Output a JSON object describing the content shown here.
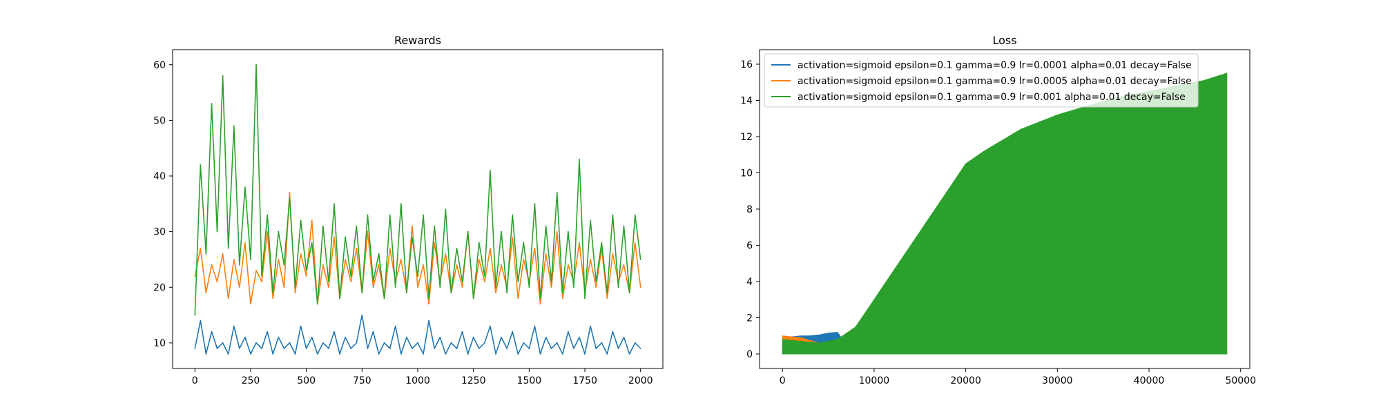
{
  "chart_data": [
    {
      "type": "line",
      "title": "Rewards",
      "xlabel": "",
      "ylabel": "",
      "xlim": [
        -100,
        2100
      ],
      "ylim": [
        5.4,
        62.7
      ],
      "x_ticks": [
        0,
        250,
        500,
        750,
        1000,
        1250,
        1500,
        1750,
        2000
      ],
      "y_ticks": [
        10,
        20,
        30,
        40,
        50,
        60
      ],
      "grid": false,
      "legend": null,
      "series": [
        {
          "color": "#1f77b4",
          "approx": true,
          "x": [
            0,
            25,
            50,
            75,
            100,
            125,
            150,
            175,
            200,
            225,
            250,
            275,
            300,
            325,
            350,
            375,
            400,
            425,
            450,
            475,
            500,
            525,
            550,
            575,
            600,
            625,
            650,
            675,
            700,
            725,
            750,
            775,
            800,
            825,
            850,
            875,
            900,
            925,
            950,
            975,
            1000,
            1025,
            1050,
            1075,
            1100,
            1125,
            1150,
            1175,
            1200,
            1225,
            1250,
            1275,
            1300,
            1325,
            1350,
            1375,
            1400,
            1425,
            1450,
            1475,
            1500,
            1525,
            1550,
            1575,
            1600,
            1625,
            1650,
            1675,
            1700,
            1725,
            1750,
            1775,
            1800,
            1825,
            1850,
            1875,
            1900,
            1925,
            1950,
            1975,
            2000
          ],
          "values": [
            9,
            14,
            8,
            12,
            9,
            10,
            8,
            13,
            9,
            11,
            8,
            10,
            9,
            12,
            8,
            11,
            9,
            10,
            8,
            13,
            9,
            11,
            8,
            10,
            9,
            12,
            8,
            11,
            9,
            10,
            15,
            9,
            12,
            8,
            10,
            9,
            13,
            8,
            11,
            9,
            10,
            8,
            14,
            9,
            11,
            8,
            10,
            9,
            12,
            8,
            11,
            9,
            10,
            13,
            8,
            11,
            9,
            12,
            8,
            10,
            9,
            13,
            8,
            11,
            9,
            10,
            8,
            12,
            9,
            11,
            8,
            13,
            9,
            10,
            8,
            12,
            9,
            11,
            8,
            10,
            9
          ]
        },
        {
          "color": "#ff7f0e",
          "approx": true,
          "x": [
            0,
            25,
            50,
            75,
            100,
            125,
            150,
            175,
            200,
            225,
            250,
            275,
            300,
            325,
            350,
            375,
            400,
            425,
            450,
            475,
            500,
            525,
            550,
            575,
            600,
            625,
            650,
            675,
            700,
            725,
            750,
            775,
            800,
            825,
            850,
            875,
            900,
            925,
            950,
            975,
            1000,
            1025,
            1050,
            1075,
            1100,
            1125,
            1150,
            1175,
            1200,
            1225,
            1250,
            1275,
            1300,
            1325,
            1350,
            1375,
            1400,
            1425,
            1450,
            1475,
            1500,
            1525,
            1550,
            1575,
            1600,
            1625,
            1650,
            1675,
            1700,
            1725,
            1750,
            1775,
            1800,
            1825,
            1850,
            1875,
            1900,
            1925,
            1950,
            1975,
            2000
          ],
          "values": [
            22,
            27,
            19,
            24,
            21,
            26,
            18,
            25,
            20,
            28,
            17,
            23,
            21,
            30,
            18,
            25,
            20,
            37,
            19,
            26,
            22,
            32,
            17,
            24,
            20,
            29,
            18,
            25,
            21,
            27,
            19,
            30,
            20,
            24,
            18,
            27,
            21,
            25,
            19,
            31,
            20,
            24,
            17,
            28,
            21,
            26,
            19,
            24,
            20,
            30,
            18,
            25,
            21,
            27,
            19,
            24,
            20,
            29,
            18,
            25,
            21,
            27,
            17,
            26,
            20,
            30,
            18,
            24,
            21,
            28,
            19,
            25,
            20,
            27,
            18,
            26,
            21,
            24,
            19,
            28,
            20
          ]
        },
        {
          "color": "#2ca02c",
          "approx": true,
          "x": [
            0,
            25,
            50,
            75,
            100,
            125,
            150,
            175,
            200,
            225,
            250,
            275,
            300,
            325,
            350,
            375,
            400,
            425,
            450,
            475,
            500,
            525,
            550,
            575,
            600,
            625,
            650,
            675,
            700,
            725,
            750,
            775,
            800,
            825,
            850,
            875,
            900,
            925,
            950,
            975,
            1000,
            1025,
            1050,
            1075,
            1100,
            1125,
            1150,
            1175,
            1200,
            1225,
            1250,
            1275,
            1300,
            1325,
            1350,
            1375,
            1400,
            1425,
            1450,
            1475,
            1500,
            1525,
            1550,
            1575,
            1600,
            1625,
            1650,
            1675,
            1700,
            1725,
            1750,
            1775,
            1800,
            1825,
            1850,
            1875,
            1900,
            1925,
            1950,
            1975,
            2000
          ],
          "values": [
            15,
            42,
            26,
            53,
            30,
            58,
            27,
            49,
            24,
            38,
            25,
            60,
            22,
            33,
            19,
            30,
            24,
            36,
            20,
            32,
            23,
            28,
            17,
            31,
            21,
            35,
            18,
            29,
            22,
            31,
            19,
            33,
            21,
            26,
            18,
            33,
            20,
            35,
            19,
            29,
            22,
            33,
            18,
            31,
            20,
            34,
            19,
            27,
            21,
            30,
            18,
            28,
            22,
            41,
            20,
            30,
            19,
            33,
            21,
            28,
            20,
            35,
            18,
            31,
            21,
            37,
            19,
            30,
            20,
            43,
            18,
            32,
            21,
            28,
            19,
            33,
            20,
            31,
            19,
            33,
            25
          ]
        }
      ]
    },
    {
      "type": "line",
      "title": "Loss",
      "xlabel": "",
      "ylabel": "",
      "xlim": [
        -2500,
        51000
      ],
      "ylim": [
        -0.8,
        16.8
      ],
      "x_ticks": [
        0,
        10000,
        20000,
        30000,
        40000,
        50000
      ],
      "y_ticks": [
        0,
        2,
        4,
        6,
        8,
        10,
        12,
        14,
        16
      ],
      "grid": false,
      "legend": {
        "placement": "upper-left",
        "entries": [
          {
            "label": "activation=sigmoid epsilon=0.1 gamma=0.9 lr=0.0001 alpha=0.01 decay=False",
            "color": "#1f77b4"
          },
          {
            "label": "activation=sigmoid epsilon=0.1 gamma=0.9 lr=0.0005 alpha=0.01 decay=False",
            "color": "#ff7f0e"
          },
          {
            "label": "activation=sigmoid epsilon=0.1 gamma=0.9 lr=0.001 alpha=0.01 decay=False",
            "color": "#2ca02c"
          }
        ]
      },
      "series": [
        {
          "color": "#1f77b4",
          "approx": true,
          "x": [
            0,
            1000,
            2000,
            3000,
            4000,
            5000,
            6000,
            7000,
            8000,
            10000,
            15000,
            20000,
            30000,
            40000,
            48500
          ],
          "upper": [
            0.8,
            0.95,
            1.0,
            1.0,
            1.05,
            1.15,
            1.2,
            0.5,
            0.05,
            0.0,
            0.0,
            0.0,
            0.0,
            0.0,
            0.0
          ],
          "lower": [
            0.2,
            0.1,
            0.05,
            0.0,
            0.0,
            0.0,
            0.0,
            0.0,
            0.0,
            0.0,
            0.0,
            0.0,
            0.0,
            0.0,
            0.0
          ]
        },
        {
          "color": "#ff7f0e",
          "approx": true,
          "x": [
            0,
            1000,
            2000,
            3000,
            4000,
            5000,
            6000,
            7000,
            8000,
            10000,
            48500
          ],
          "upper": [
            1.0,
            0.95,
            0.9,
            0.75,
            0.6,
            0.4,
            0.2,
            0.1,
            0.05,
            0.0,
            0.0
          ],
          "lower": [
            0.3,
            0.2,
            0.1,
            0.05,
            0.0,
            0.0,
            0.0,
            0.0,
            0.0,
            0.0,
            0.0
          ]
        },
        {
          "color": "#2ca02c",
          "approx": true,
          "x": [
            0,
            2000,
            4000,
            6000,
            8000,
            10000,
            12000,
            14000,
            16000,
            18000,
            20000,
            22000,
            24000,
            26000,
            28000,
            30000,
            32000,
            34000,
            36000,
            38000,
            40000,
            42000,
            44000,
            46000,
            48500
          ],
          "upper": [
            0.8,
            0.7,
            0.6,
            0.8,
            1.5,
            3.0,
            4.5,
            6.0,
            7.5,
            9.0,
            10.5,
            11.2,
            11.8,
            12.4,
            12.8,
            13.2,
            13.5,
            13.8,
            14.1,
            14.3,
            14.5,
            14.7,
            14.9,
            15.1,
            15.5
          ],
          "lower": [
            0.0,
            0.0,
            0.0,
            0.0,
            0.0,
            0.0,
            0.0,
            0.0,
            0.0,
            0.0,
            0.0,
            0.0,
            0.0,
            0.0,
            0.0,
            0.0,
            0.0,
            0.0,
            0.0,
            0.0,
            0.0,
            0.0,
            0.0,
            0.0,
            0.0
          ]
        }
      ]
    }
  ]
}
